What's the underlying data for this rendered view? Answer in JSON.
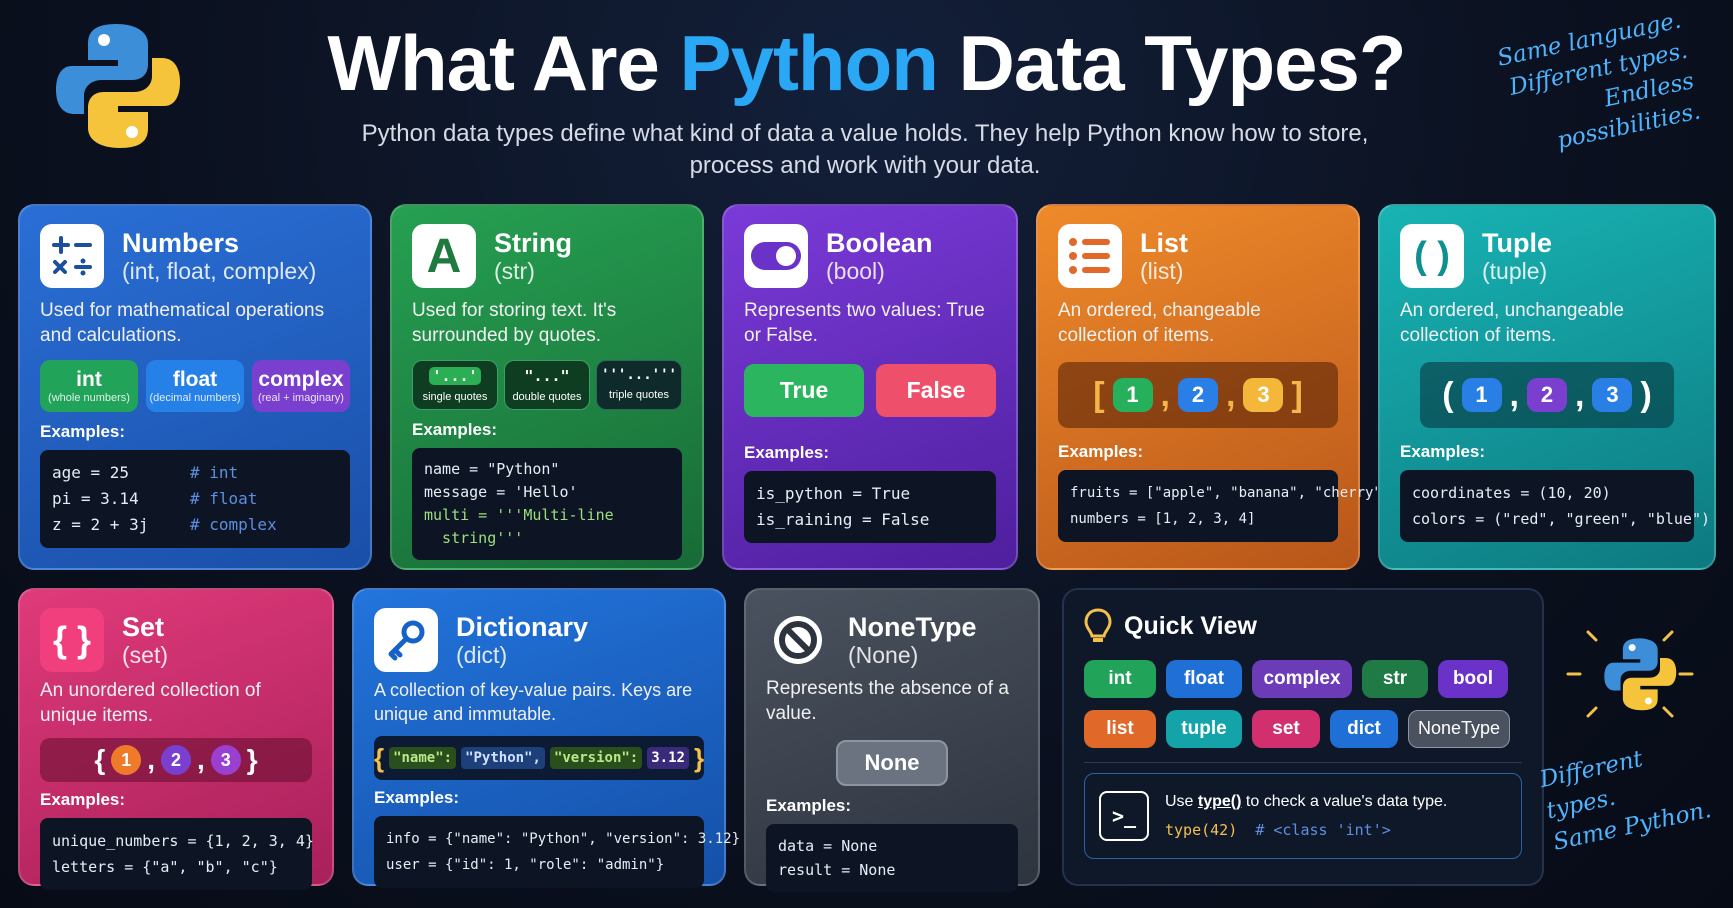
{
  "header": {
    "title_part1": "What Are ",
    "title_highlight": "Python",
    "title_part2": " Data Types?",
    "subtitle": "Python data types define what kind of data a value holds. They help Python know how to store, process and work with your data.",
    "slogan_top": [
      "Same language.",
      "Different types.",
      "Endless possibilities."
    ],
    "slogan_bottom": [
      "Different types.",
      "Same Python."
    ]
  },
  "colors": {
    "numbers": "#1d5fc4",
    "string": "#1f8a45",
    "boolean": "#6a32c9",
    "list": "#d9701f",
    "tuple": "#14a3a6",
    "set": "#d12f6e",
    "dict": "#1762c9",
    "none": "#3e4653",
    "quick": "#0f1829"
  },
  "numbers": {
    "title": "Numbers",
    "subtitle": "(int, float, complex)",
    "description": "Used for mathematical operations and calculations.",
    "icon": "math-operators-icon",
    "types": [
      {
        "label": "int",
        "note": "(whole numbers)"
      },
      {
        "label": "float",
        "note": "(decimal numbers)"
      },
      {
        "label": "complex",
        "note": "(real + imaginary)"
      }
    ],
    "examples_label": "Examples:",
    "code": [
      {
        "code": "age = 25",
        "comment": "# int"
      },
      {
        "code": "pi = 3.14",
        "comment": "# float"
      },
      {
        "code": "z = 2 + 3j",
        "comment": "# complex"
      }
    ]
  },
  "string": {
    "title": "String",
    "subtitle": "(str)",
    "description": "Used for storing text. It's surrounded by quotes.",
    "icon": "letter-a-icon",
    "icon_glyph": "A",
    "quote_types": [
      {
        "symbol": "'...'",
        "label": "single quotes"
      },
      {
        "symbol": "\"...\"",
        "label": "double quotes"
      },
      {
        "symbol": "'''...'''",
        "label": "triple quotes"
      }
    ],
    "examples_label": "Examples:",
    "code": [
      "name = \"Python\"",
      "message = 'Hello'",
      "multi = '''Multi-line",
      "  string'''"
    ]
  },
  "boolean": {
    "title": "Boolean",
    "subtitle": "(bool)",
    "description": "Represents two values: True or False.",
    "icon": "toggle-icon",
    "true_label": "True",
    "false_label": "False",
    "examples_label": "Examples:",
    "code": [
      "is_python = True",
      "is_raining = False"
    ]
  },
  "list": {
    "title": "List",
    "subtitle": "(list)",
    "description": "An ordered, changeable collection of items.",
    "icon": "list-icon",
    "items": [
      "1",
      "2",
      "3"
    ],
    "examples_label": "Examples:",
    "code": [
      "fruits = [\"apple\", \"banana\", \"cherry\"]",
      "numbers = [1, 2, 3, 4]"
    ]
  },
  "tuple": {
    "title": "Tuple",
    "subtitle": "(tuple)",
    "description": "An ordered, unchangeable collection of items.",
    "icon": "parentheses-icon",
    "icon_glyph": "( )",
    "items": [
      "1",
      "2",
      "3"
    ],
    "examples_label": "Examples:",
    "code": [
      "coordinates = (10, 20)",
      "colors = (\"red\", \"green\", \"blue\")"
    ]
  },
  "set": {
    "title": "Set",
    "subtitle": "(set)",
    "description": "An unordered collection of unique items.",
    "icon": "curly-braces-icon",
    "icon_glyph": "{ }",
    "items": [
      "1",
      "2",
      "3"
    ],
    "examples_label": "Examples:",
    "code": [
      "unique_numbers = {1, 2, 3, 4}",
      "letters = {\"a\", \"b\", \"c\"}"
    ]
  },
  "dict": {
    "title": "Dictionary",
    "subtitle": "(dict)",
    "description": "A collection of key-value pairs. Keys are unique and immutable.",
    "icon": "key-icon",
    "pairs": [
      {
        "key": "\"name\":",
        "value": "\"Python\","
      },
      {
        "key": "\"version\":",
        "value": "3.12"
      }
    ],
    "examples_label": "Examples:",
    "code": [
      "info = {\"name\": \"Python\", \"version\": 3.12}",
      "user = {\"id\": 1, \"role\": \"admin\"}"
    ]
  },
  "none": {
    "title": "NoneType",
    "subtitle": "(None)",
    "description": "Represents the absence of a value.",
    "icon": "prohibited-icon",
    "value_label": "None",
    "examples_label": "Examples:",
    "code": [
      "data = None",
      "result = None"
    ]
  },
  "quick": {
    "title": "Quick View",
    "icon": "lightbulb-icon",
    "row1": [
      {
        "label": "int",
        "color": "#22a35a"
      },
      {
        "label": "float",
        "color": "#1f6fd6"
      },
      {
        "label": "complex",
        "color": "#6c3bb8"
      },
      {
        "label": "str",
        "color": "#1f7a45"
      },
      {
        "label": "bool",
        "color": "#6a32c9"
      }
    ],
    "row2": [
      {
        "label": "list",
        "color": "#e0692a"
      },
      {
        "label": "tuple",
        "color": "#13a3a8"
      },
      {
        "label": "set",
        "color": "#d12f6e"
      },
      {
        "label": "dict",
        "color": "#1f6fd6"
      },
      {
        "label": "NoneType",
        "color": "#4a525f"
      }
    ],
    "tip_prefix": "Use ",
    "tip_func": "type()",
    "tip_suffix": " to check a value's data type.",
    "tip_code": "type(42)",
    "tip_comment": "# <class 'int'>",
    "terminal_icon": "terminal-icon"
  }
}
